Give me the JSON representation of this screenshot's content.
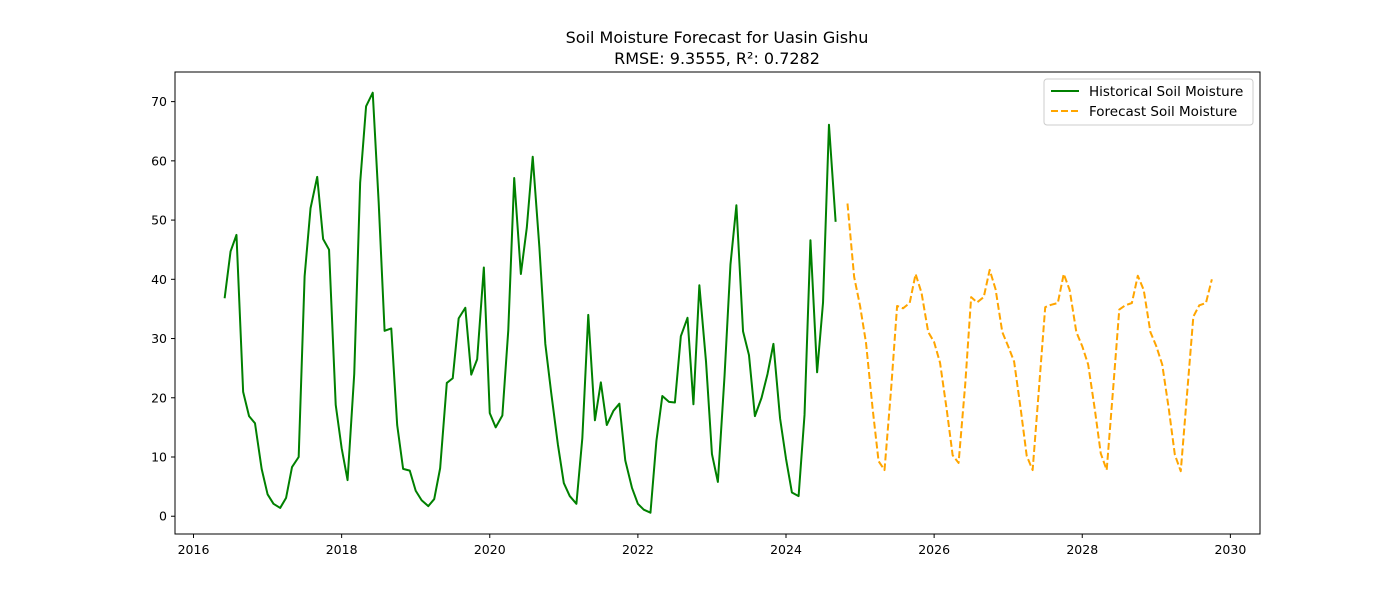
{
  "chart_data": {
    "type": "line",
    "title": "Soil Moisture Forecast for Uasin Gishu",
    "subtitle": "RMSE: 9.3555, R²: 0.7282",
    "xlabel": "",
    "ylabel": "",
    "xlim": [
      2015.75,
      2030.4
    ],
    "ylim": [
      -3.0,
      75.0
    ],
    "x_ticks": [
      2016,
      2018,
      2020,
      2022,
      2024,
      2026,
      2028,
      2030
    ],
    "x_tick_labels": [
      "2016",
      "2018",
      "2020",
      "2022",
      "2024",
      "2026",
      "2028",
      "2030"
    ],
    "y_ticks": [
      0,
      10,
      20,
      30,
      40,
      50,
      60,
      70
    ],
    "y_tick_labels": [
      "0",
      "10",
      "20",
      "30",
      "40",
      "50",
      "60",
      "70"
    ],
    "grid": false,
    "legend_position": "top-right",
    "series": [
      {
        "name": "Historical Soil Moisture",
        "color": "#008000",
        "line_style": "solid",
        "x": [
          2016.42,
          2016.5,
          2016.58,
          2016.67,
          2016.75,
          2016.83,
          2016.92,
          2017.0,
          2017.08,
          2017.17,
          2017.25,
          2017.33,
          2017.42,
          2017.5,
          2017.58,
          2017.67,
          2017.75,
          2017.83,
          2017.92,
          2018.0,
          2018.08,
          2018.17,
          2018.25,
          2018.33,
          2018.42,
          2018.5,
          2018.58,
          2018.67,
          2018.75,
          2018.83,
          2018.92,
          2019.0,
          2019.08,
          2019.17,
          2019.25,
          2019.33,
          2019.42,
          2019.5,
          2019.58,
          2019.67,
          2019.75,
          2019.83,
          2019.92,
          2020.0,
          2020.08,
          2020.17,
          2020.25,
          2020.33,
          2020.42,
          2020.5,
          2020.58,
          2020.67,
          2020.75,
          2020.83,
          2020.92,
          2021.0,
          2021.08,
          2021.17,
          2021.25,
          2021.33,
          2021.42,
          2021.5,
          2021.58,
          2021.67,
          2021.75,
          2021.83,
          2021.92,
          2022.0,
          2022.08,
          2022.17,
          2022.25,
          2022.33,
          2022.42,
          2022.5,
          2022.58,
          2022.67,
          2022.75,
          2022.83,
          2022.92,
          2023.0,
          2023.08,
          2023.17,
          2023.25,
          2023.33,
          2023.42,
          2023.5,
          2023.58,
          2023.67,
          2023.75,
          2023.83,
          2023.92,
          2024.0,
          2024.08,
          2024.17,
          2024.25,
          2024.33,
          2024.42,
          2024.5,
          2024.58,
          2024.67
        ],
        "y": [
          36.8,
          44.7,
          47.5,
          21.0,
          16.9,
          15.7,
          8.0,
          3.7,
          2.1,
          1.4,
          3.1,
          8.3,
          10.0,
          40.5,
          52.0,
          57.3,
          46.8,
          45.0,
          18.8,
          11.5,
          6.1,
          24.0,
          56.3,
          69.2,
          71.5,
          53.0,
          31.3,
          31.7,
          15.4,
          8.0,
          7.7,
          4.3,
          2.7,
          1.7,
          2.9,
          8.1,
          22.5,
          23.3,
          33.4,
          35.2,
          23.9,
          26.5,
          42.0,
          17.4,
          15.0,
          17.0,
          31.4,
          57.1,
          40.9,
          48.7,
          60.7,
          45.4,
          29.1,
          20.8,
          12.1,
          5.6,
          3.4,
          2.1,
          13.2,
          34.0,
          16.2,
          22.6,
          15.4,
          17.8,
          19.0,
          9.4,
          4.8,
          2.1,
          1.1,
          0.6,
          12.7,
          20.3,
          19.3,
          19.2,
          30.4,
          33.5,
          18.9,
          39.0,
          26.1,
          10.5,
          5.8,
          23.7,
          42.5,
          52.5,
          31.2,
          27.2,
          16.9,
          20.0,
          24.0,
          29.1,
          16.5,
          9.7,
          4.0,
          3.4,
          17.1,
          46.6,
          24.3,
          36.1,
          66.1,
          49.7
        ]
      },
      {
        "name": "Forecast Soil Moisture",
        "color": "#FFA500",
        "line_style": "dashed",
        "x": [
          2024.83,
          2024.92,
          2025.0,
          2025.08,
          2025.17,
          2025.25,
          2025.33,
          2025.42,
          2025.5,
          2025.58,
          2025.67,
          2025.75,
          2025.83,
          2025.92,
          2026.0,
          2026.08,
          2026.17,
          2026.25,
          2026.33,
          2026.42,
          2026.5,
          2026.58,
          2026.67,
          2026.75,
          2026.83,
          2026.92,
          2027.0,
          2027.08,
          2027.17,
          2027.25,
          2027.33,
          2027.42,
          2027.5,
          2027.58,
          2027.67,
          2027.75,
          2027.83,
          2027.92,
          2028.0,
          2028.08,
          2028.17,
          2028.25,
          2028.33,
          2028.42,
          2028.5,
          2028.58,
          2028.67,
          2028.75,
          2028.83,
          2028.92,
          2029.0,
          2029.08,
          2029.17,
          2029.25,
          2029.33,
          2029.42,
          2029.5,
          2029.58,
          2029.67,
          2029.75
        ],
        "y": [
          52.8,
          40.4,
          35.5,
          29.3,
          18.1,
          9.3,
          7.8,
          21.6,
          35.5,
          35.1,
          36.0,
          40.9,
          37.7,
          31.1,
          29.4,
          25.9,
          18.0,
          10.3,
          9.0,
          22.3,
          37.0,
          36.1,
          37.0,
          41.6,
          38.3,
          31.1,
          28.7,
          26.1,
          18.0,
          10.2,
          7.8,
          22.3,
          35.3,
          35.7,
          36.0,
          40.9,
          38.2,
          31.1,
          28.7,
          25.6,
          18.0,
          10.6,
          7.8,
          22.0,
          34.9,
          35.6,
          36.0,
          40.6,
          38.2,
          31.1,
          28.7,
          25.6,
          18.0,
          10.4,
          7.6,
          21.4,
          33.7,
          35.6,
          36.0,
          40.0
        ]
      }
    ]
  }
}
